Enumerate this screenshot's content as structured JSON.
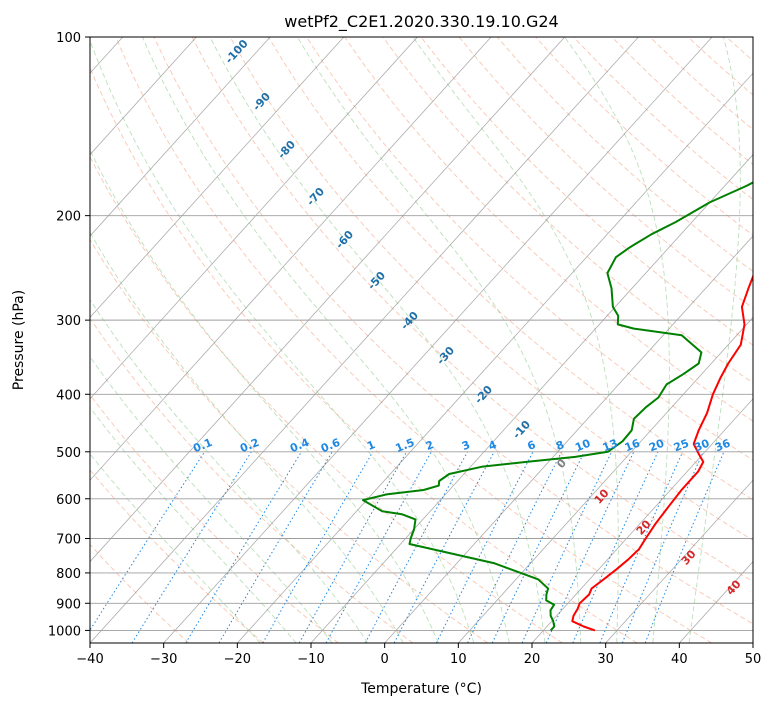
{
  "chart_data": {
    "type": "line",
    "title": "wetPf2_C2E1.2020.330.19.10.G24",
    "xlabel": "Temperature (°C)",
    "ylabel": "Pressure (hPa)",
    "xlim": [
      -40,
      50
    ],
    "ylim": [
      1050,
      100
    ],
    "y_scale": "log",
    "x_ticks": [
      -40,
      -30,
      -20,
      -10,
      0,
      10,
      20,
      30,
      40,
      50
    ],
    "y_ticks": [
      100,
      200,
      300,
      400,
      500,
      600,
      700,
      800,
      900,
      1000
    ],
    "grid": true,
    "series": [
      {
        "color": "#ff0000",
        "points": [
          [
            27.0,
            1000
          ],
          [
            25.0,
            985
          ],
          [
            22.8,
            965
          ],
          [
            22.3,
            945
          ],
          [
            22.0,
            920
          ],
          [
            21.6,
            900
          ],
          [
            21.8,
            870
          ],
          [
            21.4,
            850
          ],
          [
            21.9,
            820
          ],
          [
            22.4,
            790
          ],
          [
            22.8,
            760
          ],
          [
            23.0,
            730
          ],
          [
            22.6,
            700
          ],
          [
            22.1,
            660
          ],
          [
            21.8,
            620
          ],
          [
            21.5,
            580
          ],
          [
            21.5,
            540
          ],
          [
            21.0,
            520
          ],
          [
            19.5,
            505
          ],
          [
            17.5,
            485
          ],
          [
            16.5,
            460
          ],
          [
            15.5,
            430
          ],
          [
            14.0,
            400
          ],
          [
            13.0,
            375
          ],
          [
            12.3,
            355
          ],
          [
            11.7,
            330
          ],
          [
            9.7,
            305
          ],
          [
            7.2,
            285
          ],
          [
            5.8,
            265
          ],
          [
            4.0,
            240
          ],
          [
            2.2,
            215
          ],
          [
            0.8,
            190
          ],
          [
            -0.4,
            165
          ],
          [
            -0.9,
            145
          ],
          [
            -0.6,
            130
          ],
          [
            1.1,
            118
          ],
          [
            2.8,
            108
          ],
          [
            4.2,
            100
          ]
        ]
      },
      {
        "color": "#008000",
        "points": [
          [
            21.0,
            1000
          ],
          [
            21.0,
            985
          ],
          [
            20.2,
            965
          ],
          [
            19.2,
            945
          ],
          [
            18.5,
            925
          ],
          [
            18.3,
            905
          ],
          [
            16.7,
            890
          ],
          [
            16.0,
            870
          ],
          [
            15.5,
            850
          ],
          [
            13.0,
            820
          ],
          [
            5.0,
            770
          ],
          [
            -8.8,
            715
          ],
          [
            -9.3,
            700
          ],
          [
            -10.0,
            675
          ],
          [
            -11.0,
            650
          ],
          [
            -13.5,
            637
          ],
          [
            -16.5,
            630
          ],
          [
            -20.5,
            603
          ],
          [
            -18.0,
            590
          ],
          [
            -13.5,
            580
          ],
          [
            -12.0,
            570
          ],
          [
            -12.5,
            560
          ],
          [
            -12.0,
            545
          ],
          [
            -8.5,
            530
          ],
          [
            -3.0,
            520
          ],
          [
            3.0,
            510
          ],
          [
            6.8,
            500
          ],
          [
            7.5,
            480
          ],
          [
            7.4,
            460
          ],
          [
            6.3,
            440
          ],
          [
            6.5,
            420
          ],
          [
            7.0,
            405
          ],
          [
            6.5,
            385
          ],
          [
            7.5,
            370
          ],
          [
            8.3,
            355
          ],
          [
            7.3,
            340
          ],
          [
            2.5,
            318
          ],
          [
            -4.8,
            310
          ],
          [
            -7.5,
            305
          ],
          [
            -8.5,
            295
          ],
          [
            -10.3,
            285
          ],
          [
            -12.8,
            265
          ],
          [
            -15.2,
            250
          ],
          [
            -16.0,
            235
          ],
          [
            -15.3,
            226
          ],
          [
            -14.0,
            215
          ],
          [
            -12.2,
            205
          ],
          [
            -10.0,
            190
          ],
          [
            -7.0,
            178
          ],
          [
            -5.0,
            168
          ],
          [
            -4.2,
            150
          ],
          [
            -3.7,
            130
          ],
          [
            -2.4,
            115
          ],
          [
            -1.3,
            105
          ],
          [
            -0.6,
            100
          ]
        ]
      }
    ],
    "isotherm_labels": [
      "-100",
      "-90",
      "-80",
      "-70",
      "-60",
      "-50",
      "-40",
      "-30",
      "-20",
      "-10",
      "0",
      "10",
      "20",
      "30",
      "40"
    ],
    "mixing_ratio_labels": [
      "0.1",
      "0.2",
      "0.4",
      "0.6",
      "1",
      "1.5",
      "2",
      "3",
      "4",
      "6",
      "8",
      "10",
      "13",
      "16",
      "20",
      "25",
      "30",
      "36"
    ]
  }
}
